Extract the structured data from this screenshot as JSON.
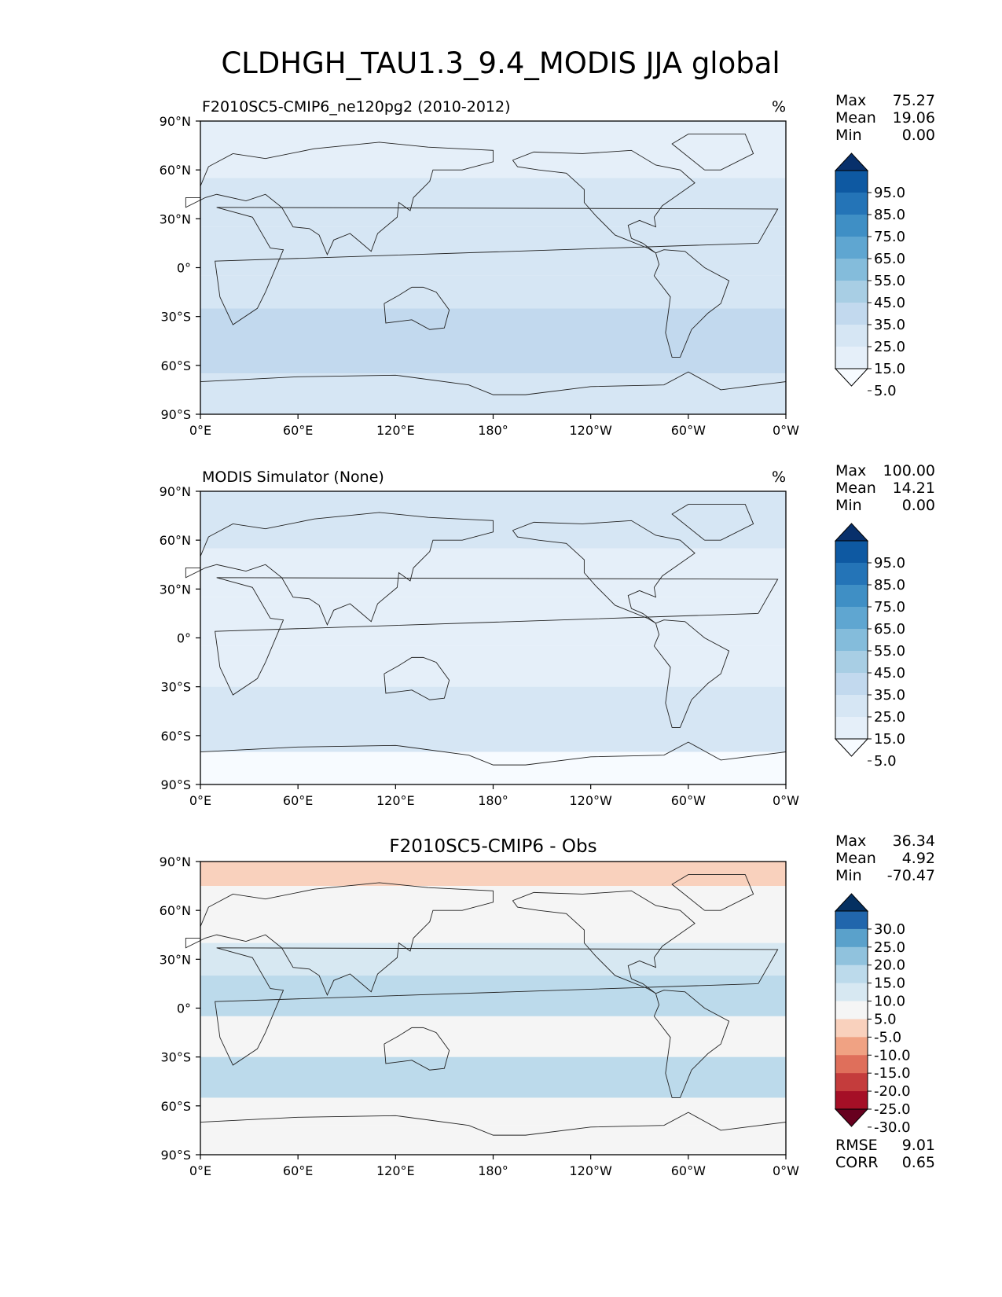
{
  "figure": {
    "title": "CLDHGH_TAU1.3_9.4_MODIS JJA global"
  },
  "axis_ticks": {
    "y": [
      "90°N",
      "60°N",
      "30°N",
      "0°",
      "30°S",
      "60°S",
      "90°S"
    ],
    "x": [
      "0°E",
      "60°E",
      "120°E",
      "180°",
      "120°W",
      "60°W",
      "0°W"
    ]
  },
  "chart_data": [
    {
      "type": "heatmap",
      "title": "F2010SC5-CMIP6_ne120pg2 (2010-2012)",
      "units": "%",
      "stats": [
        {
          "label": "Max",
          "value": "75.27"
        },
        {
          "label": "Mean",
          "value": "19.06"
        },
        {
          "label": "Min",
          "value": "0.00"
        }
      ],
      "colorbar": {
        "levels": [
          0,
          5,
          15,
          25,
          35,
          45,
          55,
          65,
          75,
          85,
          95,
          100
        ],
        "tick_labels": [
          "95.0",
          "85.0",
          "75.0",
          "65.0",
          "55.0",
          "45.0",
          "35.0",
          "25.0",
          "15.0",
          "5.0"
        ],
        "colors": [
          "#f7fbff",
          "#e5eff9",
          "#d6e6f4",
          "#c2d9ee",
          "#a8cee4",
          "#84bcdb",
          "#5fa6d1",
          "#3f8fc5",
          "#2474b7",
          "#0e59a2",
          "#08306b"
        ]
      },
      "xlim": [
        0,
        360
      ],
      "ylim": [
        -90,
        90
      ],
      "field": [
        {
          "lat": [
            90,
            55
          ],
          "value": 14
        },
        {
          "lat": [
            55,
            25
          ],
          "value": 15
        },
        {
          "lat": [
            25,
            -5
          ],
          "value": 22
        },
        {
          "lat": [
            -5,
            -25
          ],
          "value": 20
        },
        {
          "lat": [
            -25,
            -65
          ],
          "value": 27
        },
        {
          "lat": [
            -65,
            -90
          ],
          "value": 15
        }
      ]
    },
    {
      "type": "heatmap",
      "title": "MODIS Simulator (None)",
      "units": "%",
      "stats": [
        {
          "label": "Max",
          "value": "100.00"
        },
        {
          "label": "Mean",
          "value": "14.21"
        },
        {
          "label": "Min",
          "value": "0.00"
        }
      ],
      "colorbar": {
        "levels": [
          0,
          5,
          15,
          25,
          35,
          45,
          55,
          65,
          75,
          85,
          95,
          100
        ],
        "tick_labels": [
          "95.0",
          "85.0",
          "75.0",
          "65.0",
          "55.0",
          "45.0",
          "35.0",
          "25.0",
          "15.0",
          "5.0"
        ],
        "colors": [
          "#f7fbff",
          "#e5eff9",
          "#d6e6f4",
          "#c2d9ee",
          "#a8cee4",
          "#84bcdb",
          "#5fa6d1",
          "#3f8fc5",
          "#2474b7",
          "#0e59a2",
          "#08306b"
        ]
      },
      "xlim": [
        0,
        360
      ],
      "ylim": [
        -90,
        90
      ],
      "field": [
        {
          "lat": [
            90,
            55
          ],
          "value": 18
        },
        {
          "lat": [
            55,
            25
          ],
          "value": 8
        },
        {
          "lat": [
            25,
            -5
          ],
          "value": 12
        },
        {
          "lat": [
            -5,
            -30
          ],
          "value": 10
        },
        {
          "lat": [
            -30,
            -70
          ],
          "value": 24
        },
        {
          "lat": [
            -70,
            -90
          ],
          "value": 0
        }
      ]
    },
    {
      "type": "heatmap",
      "title": "F2010SC5-CMIP6 - Obs",
      "stats": [
        {
          "label": "Max",
          "value": "36.34"
        },
        {
          "label": "Mean",
          "value": "4.92"
        },
        {
          "label": "Min",
          "value": "-70.47"
        }
      ],
      "metrics": [
        {
          "label": "RMSE",
          "value": "9.01"
        },
        {
          "label": "CORR",
          "value": "0.65"
        }
      ],
      "colorbar": {
        "levels": [
          -35,
          -30,
          -25,
          -20,
          -15,
          -10,
          -5,
          5,
          10,
          15,
          20,
          25,
          30,
          35
        ],
        "tick_labels": [
          "30.0",
          "25.0",
          "20.0",
          "15.0",
          "10.0",
          "5.0",
          "-5.0",
          "-10.0",
          "-15.0",
          "-20.0",
          "-25.0",
          "-30.0"
        ],
        "colors": [
          "#67001f",
          "#a50f26",
          "#c43c3c",
          "#df6f5b",
          "#f0a283",
          "#f9d1bd",
          "#f5f5f5",
          "#d7e8f2",
          "#bcdaeb",
          "#90c2dd",
          "#5aa1cb",
          "#2166ac",
          "#053061"
        ]
      },
      "xlim": [
        0,
        360
      ],
      "ylim": [
        -90,
        90
      ],
      "field": [
        {
          "lat": [
            90,
            75
          ],
          "value": -8
        },
        {
          "lat": [
            75,
            40
          ],
          "value": 3
        },
        {
          "lat": [
            40,
            20
          ],
          "value": 7
        },
        {
          "lat": [
            20,
            -5
          ],
          "value": 14
        },
        {
          "lat": [
            -5,
            -30
          ],
          "value": 3
        },
        {
          "lat": [
            -30,
            -55
          ],
          "value": 12
        },
        {
          "lat": [
            -55,
            -72
          ],
          "value": 4
        },
        {
          "lat": [
            -72,
            -90
          ],
          "value": 0
        }
      ]
    }
  ]
}
